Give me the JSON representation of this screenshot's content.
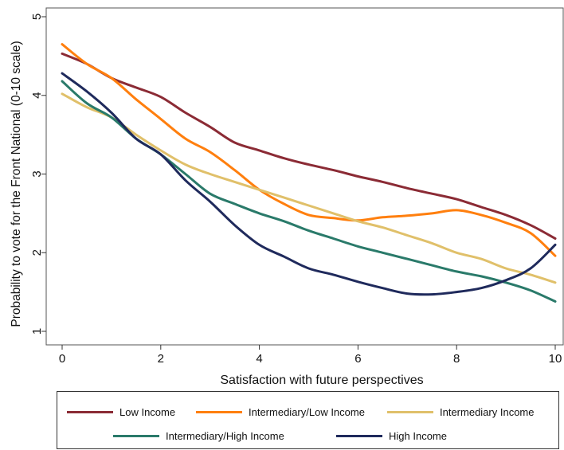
{
  "chart_data": {
    "type": "line",
    "xlabel": "Satisfaction with future perspectives",
    "ylabel": "Probability to vote for the Front National (0-10 scale)",
    "xlim": [
      0,
      10
    ],
    "ylim": [
      1,
      5
    ],
    "xticks": [
      "0",
      "2",
      "4",
      "6",
      "8",
      "10"
    ],
    "yticks": [
      "1",
      "2",
      "3",
      "4",
      "5"
    ],
    "grid": false,
    "legend_position": "bottom",
    "series": [
      {
        "name": "Low Income",
        "color": "#8b2b35",
        "x": [
          0,
          0.5,
          1,
          1.5,
          2,
          2.5,
          3,
          3.5,
          4,
          4.5,
          5,
          5.5,
          6,
          6.5,
          7,
          7.5,
          8,
          8.5,
          9,
          9.5,
          10
        ],
        "y": [
          4.53,
          4.4,
          4.22,
          4.1,
          3.98,
          3.78,
          3.6,
          3.4,
          3.3,
          3.2,
          3.12,
          3.05,
          2.97,
          2.9,
          2.82,
          2.75,
          2.68,
          2.58,
          2.48,
          2.35,
          2.18
        ]
      },
      {
        "name": "Intermediary/Low Income",
        "color": "#ff7f0e",
        "x": [
          0,
          0.5,
          1,
          1.5,
          2,
          2.5,
          3,
          3.5,
          4,
          4.5,
          5,
          5.5,
          6,
          6.5,
          7,
          7.5,
          8,
          8.5,
          9,
          9.5,
          10
        ],
        "y": [
          4.65,
          4.4,
          4.22,
          3.95,
          3.7,
          3.45,
          3.28,
          3.05,
          2.8,
          2.62,
          2.48,
          2.44,
          2.41,
          2.45,
          2.47,
          2.5,
          2.54,
          2.48,
          2.38,
          2.25,
          1.96
        ]
      },
      {
        "name": "Intermediary Income",
        "color": "#e0c06a",
        "x": [
          0,
          0.5,
          1,
          1.5,
          2,
          2.5,
          3,
          3.5,
          4,
          4.5,
          5,
          5.5,
          6,
          6.5,
          7,
          7.5,
          8,
          8.5,
          9,
          9.5,
          10
        ],
        "y": [
          4.02,
          3.85,
          3.72,
          3.5,
          3.3,
          3.12,
          3.0,
          2.9,
          2.8,
          2.7,
          2.6,
          2.5,
          2.4,
          2.32,
          2.22,
          2.12,
          2.0,
          1.92,
          1.8,
          1.72,
          1.62
        ]
      },
      {
        "name": "Intermediary/High Income",
        "color": "#2a7a6a",
        "x": [
          0,
          0.5,
          1,
          1.5,
          2,
          2.5,
          3,
          3.5,
          4,
          4.5,
          5,
          5.5,
          6,
          6.5,
          7,
          7.5,
          8,
          8.5,
          9,
          9.5,
          10
        ],
        "y": [
          4.18,
          3.9,
          3.72,
          3.45,
          3.25,
          3.0,
          2.75,
          2.62,
          2.5,
          2.4,
          2.28,
          2.18,
          2.08,
          2.0,
          1.92,
          1.84,
          1.76,
          1.7,
          1.62,
          1.52,
          1.38
        ]
      },
      {
        "name": "High Income",
        "color": "#1f2a5c",
        "x": [
          0,
          0.5,
          1,
          1.5,
          2,
          2.5,
          3,
          3.5,
          4,
          4.5,
          5,
          5.5,
          6,
          6.5,
          7,
          7.5,
          8,
          8.5,
          9,
          9.5,
          10
        ],
        "y": [
          4.28,
          4.05,
          3.78,
          3.45,
          3.25,
          2.92,
          2.65,
          2.35,
          2.1,
          1.95,
          1.8,
          1.72,
          1.63,
          1.55,
          1.48,
          1.47,
          1.5,
          1.55,
          1.65,
          1.8,
          2.1
        ]
      }
    ]
  }
}
